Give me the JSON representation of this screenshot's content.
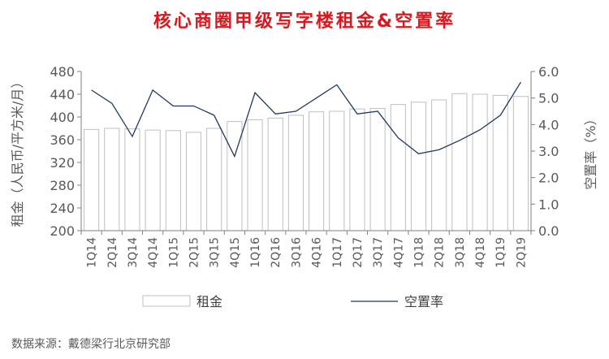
{
  "chart_data": {
    "type": "bar+line",
    "title": "核心商圈甲级写字楼租金&空置率",
    "categories": [
      "1Q14",
      "2Q14",
      "3Q14",
      "4Q14",
      "1Q15",
      "2Q15",
      "3Q15",
      "4Q15",
      "1Q16",
      "2Q16",
      "3Q16",
      "4Q16",
      "1Q17",
      "2Q17",
      "3Q17",
      "4Q17",
      "1Q18",
      "2Q18",
      "3Q18",
      "4Q18",
      "1Q19",
      "2Q19"
    ],
    "series": [
      {
        "name": "租金",
        "type": "bar",
        "axis": "left",
        "values": [
          378,
          380,
          379,
          377,
          376,
          373,
          380,
          392,
          395,
          398,
          403,
          409,
          410,
          414,
          415,
          422,
          426,
          430,
          441,
          440,
          438,
          436
        ]
      },
      {
        "name": "空置率",
        "type": "line",
        "axis": "right",
        "values": [
          5.3,
          4.8,
          3.55,
          5.3,
          4.7,
          4.7,
          4.35,
          2.8,
          5.2,
          4.4,
          4.5,
          5.0,
          5.5,
          4.4,
          4.5,
          3.5,
          2.9,
          3.05,
          3.4,
          3.8,
          4.35,
          5.6
        ]
      }
    ],
    "y_left": {
      "label": "租金（人民币/平方米/月）",
      "min": 200,
      "max": 480,
      "ticks": [
        "200",
        "240",
        "280",
        "320",
        "360",
        "400",
        "440",
        "480"
      ]
    },
    "y_right": {
      "label": "空置率（%）",
      "min": 0,
      "max": 6,
      "ticks": [
        "0.0",
        "1.0",
        "2.0",
        "3.0",
        "4.0",
        "5.0",
        "6.0"
      ]
    },
    "grid": false,
    "legend_position": "bottom"
  },
  "legend": {
    "bar_label": "租金",
    "line_label": "空置率"
  },
  "source": "数据来源：戴德梁行北京研究部",
  "colors": {
    "title": "#d7191f",
    "line": "#1f3864",
    "bar_border": "#bfbfbf",
    "axis": "#7f7f7f",
    "text": "#595959"
  }
}
